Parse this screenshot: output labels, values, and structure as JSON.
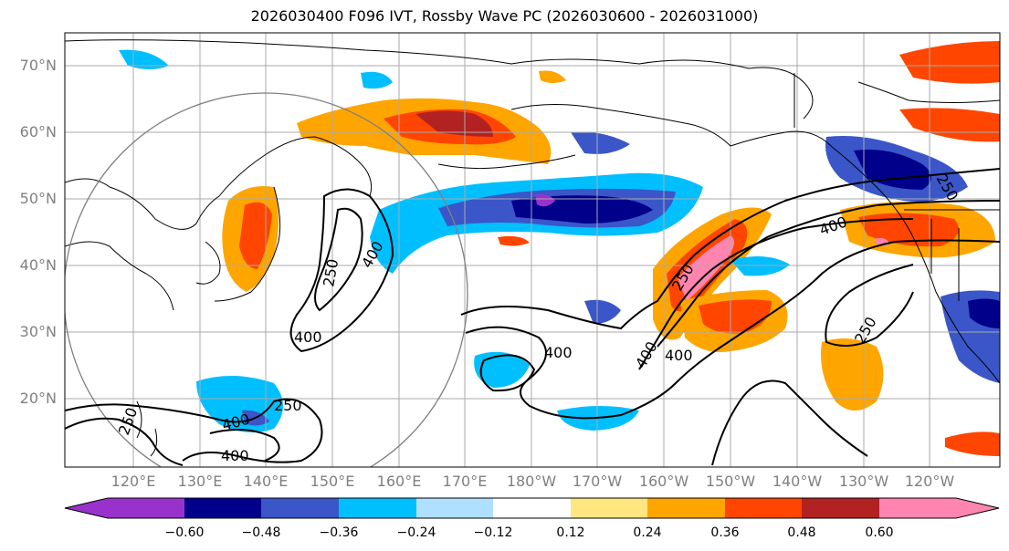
{
  "title": "2026030400 F096 IVT, Rossby Wave PC (2026030600 - 2026031000)",
  "lat_labels": [
    "70°N",
    "60°N",
    "50°N",
    "40°N",
    "30°N",
    "20°N"
  ],
  "lon_labels": [
    "120°E",
    "130°E",
    "140°E",
    "150°E",
    "160°E",
    "170°E",
    "180°W",
    "170°W",
    "160°W",
    "150°W",
    "140°W",
    "130°W",
    "120°W"
  ],
  "contour_labels": [
    "250",
    "400",
    "400",
    "250",
    "400",
    "400",
    "400",
    "250",
    "400",
    "250",
    "250",
    "400",
    "400",
    "250"
  ],
  "colorbar": {
    "ticks": [
      "−0.60",
      "−0.48",
      "−0.36",
      "−0.24",
      "−0.12",
      "0.12",
      "0.24",
      "0.36",
      "0.48",
      "0.60"
    ],
    "colors": [
      "#9932cc",
      "#00008b",
      "#3a56c8",
      "#00bfff",
      "#b0e0ff",
      "#ffffff",
      "#ffe680",
      "#ffa500",
      "#ff4500",
      "#b22222",
      "#ff85b0"
    ]
  }
}
